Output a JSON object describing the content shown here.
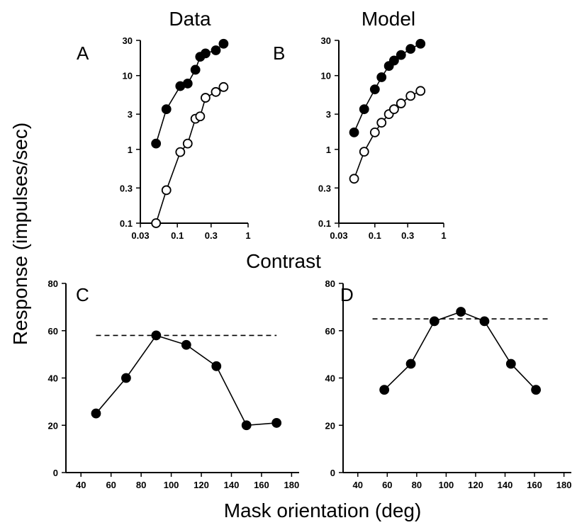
{
  "figure": {
    "col_titles": [
      "Data",
      "Model"
    ],
    "shared_x_label_top": "Contrast",
    "shared_y_label": "Response (impulses/sec)",
    "shared_x_label_bottom": "Mask orientation (deg)"
  },
  "chart_data": [
    {
      "panel": "A",
      "type": "line",
      "title": "Data",
      "xscale": "log",
      "yscale": "log",
      "xlim": [
        0.03,
        1
      ],
      "ylim": [
        0.1,
        30
      ],
      "xticks": [
        0.03,
        0.1,
        0.3,
        1
      ],
      "xtick_labels": [
        "0.03",
        "0.1",
        "0.3",
        "1"
      ],
      "yticks": [
        0.1,
        0.3,
        1,
        3,
        10,
        30
      ],
      "ytick_labels": [
        "0.1",
        "0.3",
        "1",
        "3",
        "10",
        "30"
      ],
      "grid": false,
      "series": [
        {
          "marker": "filled-circle",
          "x": [
            0.05,
            0.07,
            0.11,
            0.14,
            0.18,
            0.21,
            0.25,
            0.35,
            0.45
          ],
          "y": [
            1.2,
            3.5,
            7.2,
            7.8,
            12,
            18,
            20,
            22,
            27
          ]
        },
        {
          "marker": "open-circle",
          "x": [
            0.05,
            0.07,
            0.11,
            0.14,
            0.18,
            0.21,
            0.25,
            0.35,
            0.45
          ],
          "y": [
            0.1,
            0.28,
            0.92,
            1.2,
            2.6,
            2.8,
            5.0,
            6.0,
            7.0
          ]
        }
      ]
    },
    {
      "panel": "B",
      "type": "line",
      "title": "Model",
      "xscale": "log",
      "yscale": "log",
      "xlim": [
        0.03,
        1
      ],
      "ylim": [
        0.1,
        30
      ],
      "xticks": [
        0.03,
        0.1,
        0.3,
        1
      ],
      "xtick_labels": [
        "0.03",
        "0.1",
        "0.3",
        "1"
      ],
      "yticks": [
        0.1,
        0.3,
        1,
        3,
        10,
        30
      ],
      "ytick_labels": [
        "0.1",
        "0.3",
        "1",
        "3",
        "10",
        "30"
      ],
      "grid": false,
      "series": [
        {
          "marker": "filled-circle",
          "x": [
            0.05,
            0.07,
            0.1,
            0.125,
            0.16,
            0.19,
            0.24,
            0.33,
            0.46
          ],
          "y": [
            1.7,
            3.5,
            6.5,
            9.5,
            13.5,
            16,
            19,
            23,
            27
          ]
        },
        {
          "marker": "open-circle",
          "x": [
            0.05,
            0.07,
            0.1,
            0.125,
            0.16,
            0.19,
            0.24,
            0.33,
            0.46
          ],
          "y": [
            0.4,
            0.93,
            1.7,
            2.3,
            3.0,
            3.5,
            4.2,
            5.3,
            6.2
          ]
        }
      ]
    },
    {
      "panel": "C",
      "type": "line",
      "xscale": "linear",
      "yscale": "linear",
      "xlim": [
        30,
        185
      ],
      "ylim": [
        0,
        80
      ],
      "xticks": [
        40,
        60,
        80,
        100,
        120,
        140,
        160,
        180
      ],
      "xtick_labels": [
        "40",
        "60",
        "80",
        "100",
        "120",
        "140",
        "160",
        "180"
      ],
      "yticks": [
        0,
        20,
        40,
        60,
        80
      ],
      "ytick_labels": [
        "0",
        "20",
        "40",
        "60",
        "80"
      ],
      "grid": false,
      "reference_line": {
        "y": 58,
        "x_range": [
          50,
          170
        ],
        "style": "dashed"
      },
      "series": [
        {
          "marker": "filled-circle",
          "x": [
            50,
            70,
            90,
            110,
            130,
            150,
            170
          ],
          "y": [
            25,
            40,
            58,
            54,
            45,
            20,
            21
          ]
        }
      ]
    },
    {
      "panel": "D",
      "type": "line",
      "xscale": "linear",
      "yscale": "linear",
      "xlim": [
        30,
        185
      ],
      "ylim": [
        0,
        80
      ],
      "xticks": [
        40,
        60,
        80,
        100,
        120,
        140,
        160,
        180
      ],
      "xtick_labels": [
        "40",
        "60",
        "80",
        "100",
        "120",
        "140",
        "160",
        "180"
      ],
      "yticks": [
        0,
        20,
        40,
        60,
        80
      ],
      "ytick_labels": [
        "0",
        "20",
        "40",
        "60",
        "80"
      ],
      "grid": false,
      "reference_line": {
        "y": 65,
        "x_range": [
          50,
          170
        ],
        "style": "dashed"
      },
      "series": [
        {
          "marker": "filled-circle",
          "x": [
            58,
            76,
            92,
            110,
            126,
            144,
            161
          ],
          "y": [
            35,
            46,
            64,
            68,
            64,
            46,
            35
          ]
        }
      ]
    }
  ]
}
